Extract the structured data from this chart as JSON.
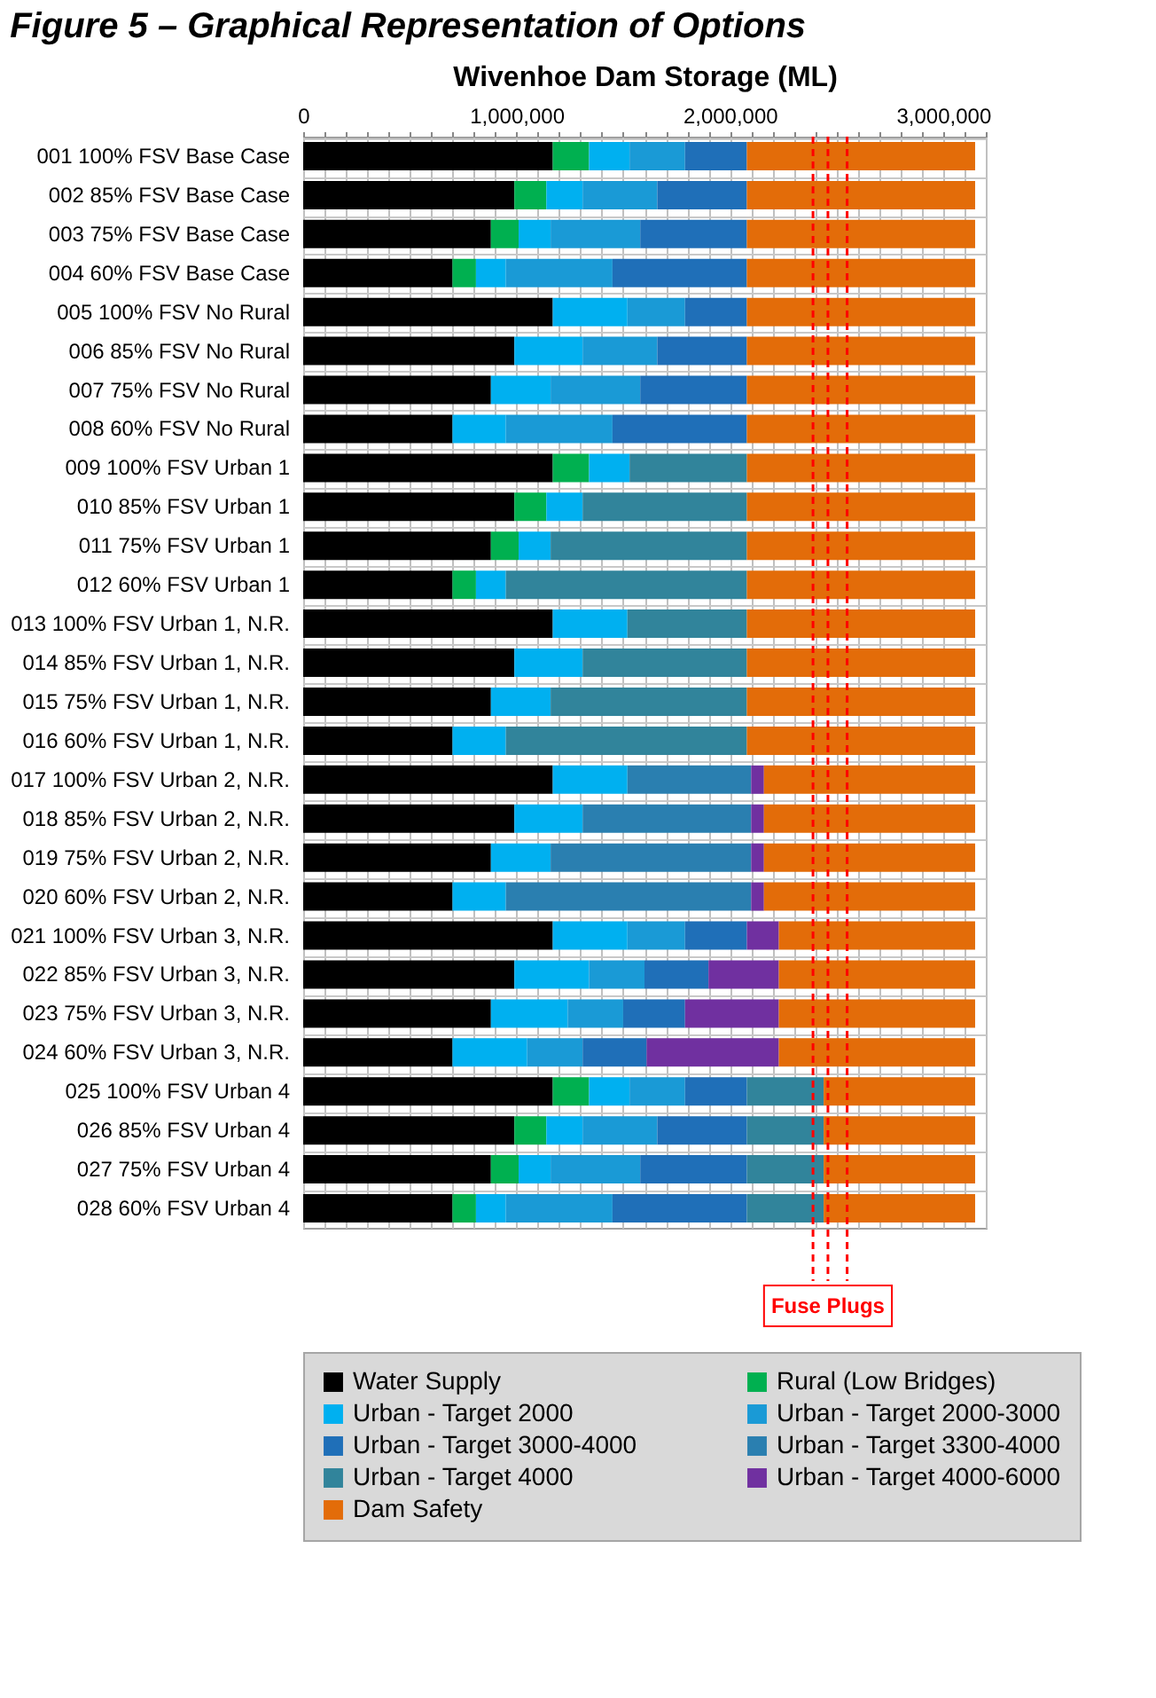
{
  "chart_data": {
    "type": "bar",
    "orientation": "horizontal",
    "stacked": true,
    "title": "Figure 5 – Graphical Representation of Options",
    "xlabel": "Wivenhoe Dam Storage (ML)",
    "categories": [
      "001 100% FSV Base Case",
      "002 85% FSV Base Case",
      "003 75% FSV Base Case",
      "004 60% FSV Base Case",
      "005 100% FSV No Rural",
      "006 85% FSV No Rural",
      "007 75% FSV No Rural",
      "008 60% FSV No Rural",
      "009 100% FSV Urban 1",
      "010 85% FSV Urban 1",
      "011 75% FSV Urban 1",
      "012 60% FSV Urban 1",
      "013 100% FSV Urban 1, N.R.",
      "014 85% FSV Urban 1, N.R.",
      "015 75% FSV Urban 1, N.R.",
      "016 60% FSV Urban 1, N.R.",
      "017 100% FSV Urban 2, N.R.",
      "018 85% FSV Urban 2, N.R.",
      "019 75% FSV Urban 2, N.R.",
      "020 60% FSV Urban 2, N.R.",
      "021 100% FSV Urban 3, N.R.",
      "022 85% FSV Urban 3, N.R.",
      "023 75% FSV Urban 3, N.R.",
      "024 60% FSV Urban 3, N.R.",
      "025 100% FSV Urban 4",
      "026 85% FSV Urban 4",
      "027 75% FSV Urban 4",
      "028 60% FSV Urban 4"
    ],
    "series": [
      {
        "name": "Water Supply",
        "color": "#000000",
        "values": [
          1170000,
          990000,
          880000,
          700000,
          1170000,
          990000,
          880000,
          700000,
          1170000,
          990000,
          880000,
          700000,
          1170000,
          990000,
          880000,
          700000,
          1170000,
          990000,
          880000,
          700000,
          1170000,
          990000,
          880000,
          700000,
          1170000,
          990000,
          880000,
          700000
        ]
      },
      {
        "name": "Rural (Low Bridges)",
        "color": "#00b050",
        "values": [
          170000,
          150000,
          130000,
          110000,
          null,
          null,
          null,
          null,
          170000,
          150000,
          130000,
          110000,
          null,
          null,
          null,
          null,
          null,
          null,
          null,
          null,
          null,
          null,
          null,
          null,
          170000,
          150000,
          130000,
          110000
        ]
      },
      {
        "name": "Urban - Target 2000",
        "color": "#00b0f0",
        "values": [
          190000,
          170000,
          150000,
          140000,
          350000,
          320000,
          280000,
          250000,
          190000,
          170000,
          150000,
          140000,
          350000,
          320000,
          280000,
          250000,
          350000,
          320000,
          280000,
          250000,
          350000,
          350000,
          360000,
          350000,
          190000,
          170000,
          150000,
          140000
        ]
      },
      {
        "name": "Urban - Target 2000-3000",
        "color": "#1a9ad6",
        "values": [
          260000,
          350000,
          420000,
          500000,
          270000,
          350000,
          420000,
          500000,
          null,
          null,
          null,
          null,
          null,
          null,
          null,
          null,
          null,
          null,
          null,
          null,
          270000,
          260000,
          260000,
          260000,
          260000,
          350000,
          420000,
          500000
        ]
      },
      {
        "name": "Urban - Target 3000-4000",
        "color": "#1f6fb8",
        "values": [
          290000,
          420000,
          500000,
          630000,
          290000,
          420000,
          500000,
          630000,
          null,
          null,
          null,
          null,
          null,
          null,
          null,
          null,
          null,
          null,
          null,
          null,
          290000,
          300000,
          290000,
          300000,
          290000,
          420000,
          500000,
          630000
        ]
      },
      {
        "name": "Urban - Target 3300-4000",
        "color": "#2a7fb0",
        "values": [
          null,
          null,
          null,
          null,
          null,
          null,
          null,
          null,
          null,
          null,
          null,
          null,
          null,
          null,
          null,
          null,
          580000,
          790000,
          940000,
          1150000,
          null,
          null,
          null,
          null,
          null,
          null,
          null,
          null
        ]
      },
      {
        "name": "Urban - Target 4000",
        "color": "#31849b",
        "values": [
          null,
          null,
          null,
          null,
          null,
          null,
          null,
          null,
          550000,
          770000,
          920000,
          1130000,
          560000,
          770000,
          920000,
          1130000,
          null,
          null,
          null,
          null,
          null,
          null,
          null,
          null,
          360000,
          360000,
          360000,
          360000
        ]
      },
      {
        "name": "Urban - Target 4000-6000",
        "color": "#7030a0",
        "values": [
          null,
          null,
          null,
          null,
          null,
          null,
          null,
          null,
          null,
          null,
          null,
          null,
          null,
          null,
          null,
          null,
          60000,
          60000,
          60000,
          60000,
          150000,
          330000,
          440000,
          620000,
          null,
          null,
          null,
          null
        ]
      },
      {
        "name": "Dam Safety",
        "color": "#e36c09",
        "values": [
          1070000,
          1070000,
          1070000,
          1070000,
          1070000,
          1070000,
          1070000,
          1070000,
          1070000,
          1070000,
          1070000,
          1070000,
          1070000,
          1070000,
          1070000,
          1070000,
          990000,
          990000,
          990000,
          990000,
          920000,
          920000,
          920000,
          920000,
          710000,
          710000,
          710000,
          710000
        ]
      }
    ],
    "xlim": [
      0,
      3200000
    ],
    "xticks": [
      {
        "value": 0,
        "label": "0"
      },
      {
        "value": 100000,
        "label": null
      },
      {
        "value": 200000,
        "label": null
      },
      {
        "value": 300000,
        "label": null
      },
      {
        "value": 400000,
        "label": null
      },
      {
        "value": 500000,
        "label": null
      },
      {
        "value": 600000,
        "label": null
      },
      {
        "value": 700000,
        "label": null
      },
      {
        "value": 800000,
        "label": null
      },
      {
        "value": 900000,
        "label": null
      },
      {
        "value": 1000000,
        "label": "1,000,000"
      },
      {
        "value": 1100000,
        "label": null
      },
      {
        "value": 1200000,
        "label": null
      },
      {
        "value": 1300000,
        "label": null
      },
      {
        "value": 1400000,
        "label": null
      },
      {
        "value": 1500000,
        "label": null
      },
      {
        "value": 1600000,
        "label": null
      },
      {
        "value": 1700000,
        "label": null
      },
      {
        "value": 1800000,
        "label": null
      },
      {
        "value": 1900000,
        "label": null
      },
      {
        "value": 2000000,
        "label": "2,000,000"
      },
      {
        "value": 2100000,
        "label": null
      },
      {
        "value": 2200000,
        "label": null
      },
      {
        "value": 2300000,
        "label": null
      },
      {
        "value": 2400000,
        "label": null
      },
      {
        "value": 2500000,
        "label": null
      },
      {
        "value": 2600000,
        "label": null
      },
      {
        "value": 2700000,
        "label": null
      },
      {
        "value": 2800000,
        "label": null
      },
      {
        "value": 2900000,
        "label": null
      },
      {
        "value": 3000000,
        "label": "3,000,000"
      },
      {
        "value": 3100000,
        "label": null
      },
      {
        "value": 3200000,
        "label": null
      }
    ],
    "ref_lines": [
      {
        "axis": "x",
        "value": 2390000,
        "label": null,
        "color": "#ff0000",
        "line_style": "dashed"
      },
      {
        "axis": "x",
        "value": 2460000,
        "label": "Fuse Plugs",
        "color": "#ff0000",
        "line_style": "dashed"
      },
      {
        "axis": "x",
        "value": 2550000,
        "label": null,
        "color": "#ff0000",
        "line_style": "dashed"
      }
    ],
    "grid": true,
    "legend": "bottom"
  }
}
